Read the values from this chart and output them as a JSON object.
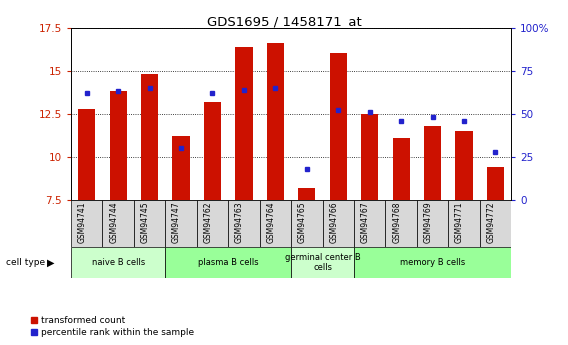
{
  "title": "GDS1695 / 1458171_at",
  "samples": [
    "GSM94741",
    "GSM94744",
    "GSM94745",
    "GSM94747",
    "GSM94762",
    "GSM94763",
    "GSM94764",
    "GSM94765",
    "GSM94766",
    "GSM94767",
    "GSM94768",
    "GSM94769",
    "GSM94771",
    "GSM94772"
  ],
  "transformed_count": [
    12.8,
    13.8,
    14.8,
    11.2,
    13.2,
    16.4,
    16.6,
    8.2,
    16.0,
    12.5,
    11.1,
    11.8,
    11.5,
    9.4
  ],
  "percentile_rank": [
    62,
    63,
    65,
    30,
    62,
    64,
    65,
    18,
    52,
    51,
    46,
    48,
    46,
    28
  ],
  "ylim_left": [
    7.5,
    17.5
  ],
  "ylim_right": [
    0,
    100
  ],
  "yticks_left": [
    7.5,
    10.0,
    12.5,
    15.0,
    17.5
  ],
  "yticks_right": [
    0,
    25,
    50,
    75,
    100
  ],
  "cell_type_groups": [
    {
      "label": "naive B cells",
      "start": 0,
      "end": 3,
      "color": "#ccffcc"
    },
    {
      "label": "plasma B cells",
      "start": 3,
      "end": 7,
      "color": "#99ff99"
    },
    {
      "label": "germinal center B\ncells",
      "start": 7,
      "end": 9,
      "color": "#ccffcc"
    },
    {
      "label": "memory B cells",
      "start": 9,
      "end": 14,
      "color": "#99ff99"
    }
  ],
  "bar_color": "#cc1100",
  "dot_color": "#2222cc",
  "bar_width": 0.55,
  "tick_label_color_left": "#cc2200",
  "tick_label_color_right": "#2222cc",
  "legend_red_label": "transformed count",
  "legend_blue_label": "percentile rank within the sample",
  "cell_type_label": "cell type",
  "ytick_labels_left": [
    "7.5",
    "10",
    "12.5",
    "15",
    "17.5"
  ],
  "ytick_labels_right": [
    "0",
    "25",
    "50",
    "75",
    "100%"
  ]
}
